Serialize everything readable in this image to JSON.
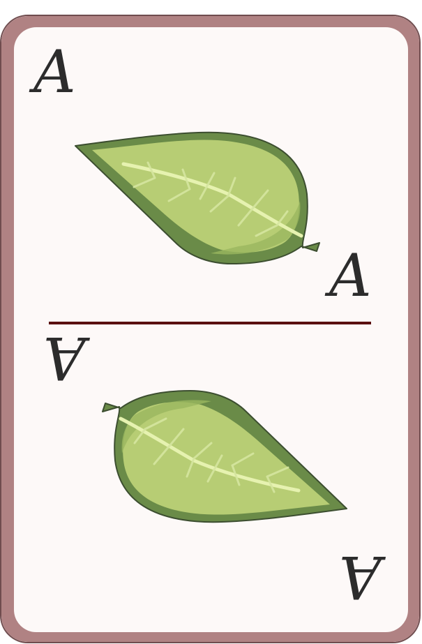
{
  "card": {
    "rank": "A",
    "suit_icon": "leaf-icon",
    "colors": {
      "border": "#b08283",
      "face": "#fdf9f8",
      "divider": "#5a1010",
      "leaf_dark": "#6a8b48",
      "leaf_mid": "#9ab75f",
      "leaf_light": "#b7cd74",
      "vein": "#e6f2b0"
    }
  }
}
